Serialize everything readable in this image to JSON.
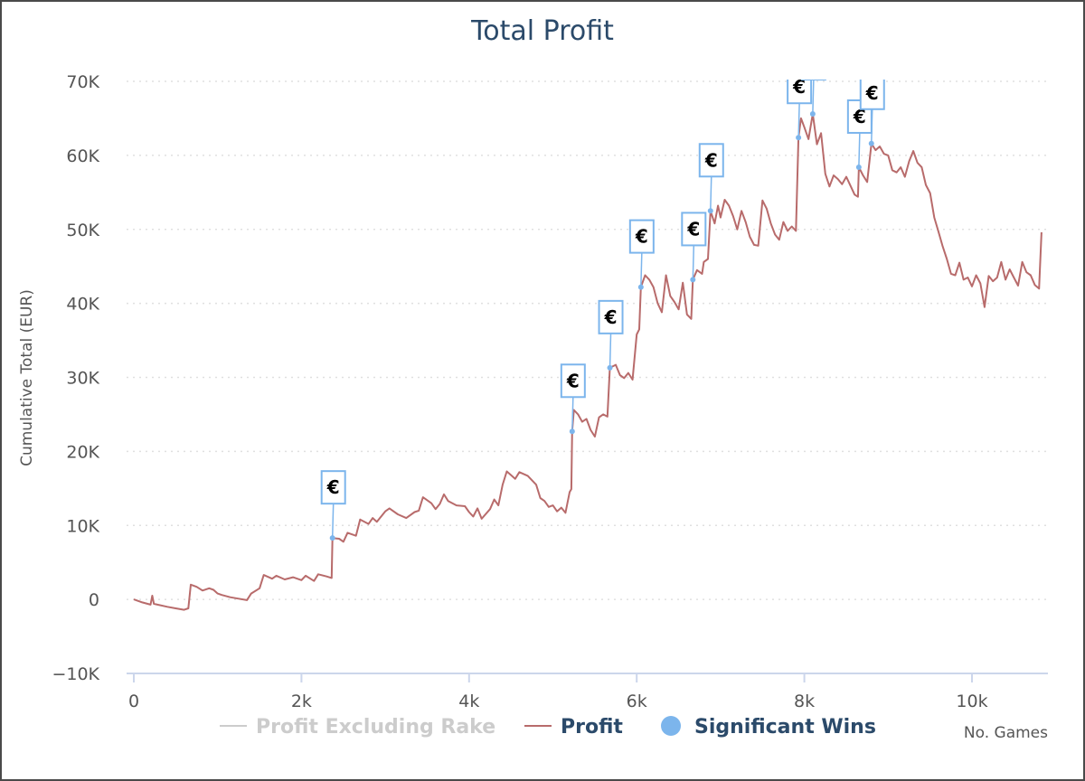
{
  "chart_data": {
    "type": "line",
    "title": "Total Profit",
    "xlabel": "No. Games",
    "ylabel": "Cumulative Total (EUR)",
    "xlim": [
      0,
      10900
    ],
    "ylim": [
      -10000,
      70000
    ],
    "x_ticks": [
      0,
      2000,
      4000,
      6000,
      8000,
      10000
    ],
    "x_tick_labels": [
      "0",
      "2k",
      "4k",
      "6k",
      "8k",
      "10k"
    ],
    "y_ticks": [
      -10000,
      0,
      10000,
      20000,
      30000,
      40000,
      50000,
      60000,
      70000
    ],
    "y_tick_labels": [
      "−10K",
      "0",
      "10K",
      "20K",
      "30K",
      "40K",
      "50K",
      "60K",
      "70K"
    ],
    "grid": "horizontal dotted",
    "legend_position": "bottom",
    "legend": [
      {
        "label": "Profit Excluding Rake",
        "color": "#cccccc",
        "symbol": "line",
        "hidden": true
      },
      {
        "label": "Profit",
        "color": "#b86b6b",
        "symbol": "line"
      },
      {
        "label": "Significant Wins",
        "color": "#7cb5ec",
        "symbol": "circle"
      }
    ],
    "marker_symbol": "€",
    "series": [
      {
        "name": "Profit",
        "color": "#b86b6b",
        "points": [
          [
            0,
            0
          ],
          [
            100,
            -400
          ],
          [
            200,
            -700
          ],
          [
            220,
            500
          ],
          [
            240,
            -600
          ],
          [
            400,
            -1000
          ],
          [
            500,
            -1200
          ],
          [
            600,
            -1400
          ],
          [
            650,
            -1200
          ],
          [
            680,
            2000
          ],
          [
            750,
            1700
          ],
          [
            820,
            1200
          ],
          [
            900,
            1500
          ],
          [
            950,
            1300
          ],
          [
            1000,
            800
          ],
          [
            1050,
            600
          ],
          [
            1150,
            300
          ],
          [
            1250,
            100
          ],
          [
            1350,
            -100
          ],
          [
            1400,
            800
          ],
          [
            1500,
            1500
          ],
          [
            1550,
            3300
          ],
          [
            1650,
            2800
          ],
          [
            1700,
            3200
          ],
          [
            1800,
            2700
          ],
          [
            1900,
            3000
          ],
          [
            2000,
            2600
          ],
          [
            2050,
            3200
          ],
          [
            2150,
            2500
          ],
          [
            2200,
            3400
          ],
          [
            2300,
            3100
          ],
          [
            2360,
            2900
          ],
          [
            2370,
            8300
          ],
          [
            2450,
            8200
          ],
          [
            2500,
            7800
          ],
          [
            2550,
            9000
          ],
          [
            2650,
            8600
          ],
          [
            2700,
            10800
          ],
          [
            2800,
            10200
          ],
          [
            2850,
            11000
          ],
          [
            2900,
            10500
          ],
          [
            3000,
            11900
          ],
          [
            3050,
            12300
          ],
          [
            3150,
            11500
          ],
          [
            3250,
            11000
          ],
          [
            3350,
            11800
          ],
          [
            3400,
            12000
          ],
          [
            3450,
            13800
          ],
          [
            3550,
            13000
          ],
          [
            3600,
            12200
          ],
          [
            3650,
            12900
          ],
          [
            3700,
            14200
          ],
          [
            3750,
            13300
          ],
          [
            3850,
            12700
          ],
          [
            3950,
            12600
          ],
          [
            4000,
            11800
          ],
          [
            4050,
            11200
          ],
          [
            4100,
            12300
          ],
          [
            4150,
            10900
          ],
          [
            4250,
            12200
          ],
          [
            4300,
            13500
          ],
          [
            4350,
            12700
          ],
          [
            4400,
            15500
          ],
          [
            4450,
            17300
          ],
          [
            4500,
            16800
          ],
          [
            4550,
            16300
          ],
          [
            4600,
            17200
          ],
          [
            4700,
            16700
          ],
          [
            4800,
            15500
          ],
          [
            4850,
            13700
          ],
          [
            4900,
            13300
          ],
          [
            4950,
            12500
          ],
          [
            5000,
            12700
          ],
          [
            5050,
            11900
          ],
          [
            5100,
            12400
          ],
          [
            5150,
            11700
          ],
          [
            5200,
            14500
          ],
          [
            5220,
            14900
          ],
          [
            5230,
            22700
          ],
          [
            5250,
            25600
          ],
          [
            5300,
            25000
          ],
          [
            5350,
            24000
          ],
          [
            5400,
            24400
          ],
          [
            5450,
            22900
          ],
          [
            5500,
            22000
          ],
          [
            5550,
            24600
          ],
          [
            5600,
            25000
          ],
          [
            5650,
            24700
          ],
          [
            5680,
            31300
          ],
          [
            5750,
            31700
          ],
          [
            5800,
            30300
          ],
          [
            5850,
            29900
          ],
          [
            5900,
            30600
          ],
          [
            5950,
            29700
          ],
          [
            6000,
            35800
          ],
          [
            6030,
            36500
          ],
          [
            6050,
            42200
          ],
          [
            6100,
            43800
          ],
          [
            6150,
            43200
          ],
          [
            6200,
            42200
          ],
          [
            6250,
            40000
          ],
          [
            6300,
            38800
          ],
          [
            6350,
            43800
          ],
          [
            6400,
            41000
          ],
          [
            6450,
            40200
          ],
          [
            6500,
            39200
          ],
          [
            6550,
            42800
          ],
          [
            6600,
            38500
          ],
          [
            6650,
            37900
          ],
          [
            6670,
            43200
          ],
          [
            6720,
            44500
          ],
          [
            6780,
            44000
          ],
          [
            6800,
            45600
          ],
          [
            6850,
            46000
          ],
          [
            6880,
            52500
          ],
          [
            6930,
            50800
          ],
          [
            6970,
            53200
          ],
          [
            7000,
            51600
          ],
          [
            7050,
            54000
          ],
          [
            7100,
            53200
          ],
          [
            7150,
            51800
          ],
          [
            7200,
            50000
          ],
          [
            7250,
            52500
          ],
          [
            7300,
            51000
          ],
          [
            7350,
            49000
          ],
          [
            7400,
            47900
          ],
          [
            7450,
            47800
          ],
          [
            7500,
            53900
          ],
          [
            7550,
            52800
          ],
          [
            7600,
            50800
          ],
          [
            7650,
            49300
          ],
          [
            7700,
            48600
          ],
          [
            7750,
            51000
          ],
          [
            7800,
            49800
          ],
          [
            7850,
            50400
          ],
          [
            7900,
            49800
          ],
          [
            7930,
            62400
          ],
          [
            7960,
            65000
          ],
          [
            8000,
            63800
          ],
          [
            8050,
            62200
          ],
          [
            8100,
            65600
          ],
          [
            8150,
            61500
          ],
          [
            8200,
            63000
          ],
          [
            8250,
            57500
          ],
          [
            8300,
            55800
          ],
          [
            8350,
            57300
          ],
          [
            8400,
            56800
          ],
          [
            8450,
            56100
          ],
          [
            8500,
            57100
          ],
          [
            8550,
            55900
          ],
          [
            8600,
            54700
          ],
          [
            8640,
            54400
          ],
          [
            8650,
            58400
          ],
          [
            8700,
            57300
          ],
          [
            8750,
            56400
          ],
          [
            8800,
            61600
          ],
          [
            8850,
            60700
          ],
          [
            8900,
            61200
          ],
          [
            8950,
            60200
          ],
          [
            9000,
            60000
          ],
          [
            9050,
            58000
          ],
          [
            9100,
            57700
          ],
          [
            9150,
            58400
          ],
          [
            9200,
            57100
          ],
          [
            9250,
            59200
          ],
          [
            9300,
            60600
          ],
          [
            9350,
            59000
          ],
          [
            9400,
            58400
          ],
          [
            9450,
            56000
          ],
          [
            9500,
            54900
          ],
          [
            9550,
            51600
          ],
          [
            9600,
            49700
          ],
          [
            9650,
            47700
          ],
          [
            9700,
            46000
          ],
          [
            9750,
            44000
          ],
          [
            9800,
            43800
          ],
          [
            9850,
            45500
          ],
          [
            9900,
            43200
          ],
          [
            9950,
            43500
          ],
          [
            10000,
            42300
          ],
          [
            10050,
            43800
          ],
          [
            10100,
            42700
          ],
          [
            10150,
            39500
          ],
          [
            10200,
            43700
          ],
          [
            10250,
            43000
          ],
          [
            10300,
            43500
          ],
          [
            10350,
            45600
          ],
          [
            10400,
            43200
          ],
          [
            10450,
            44600
          ],
          [
            10500,
            43500
          ],
          [
            10550,
            42400
          ],
          [
            10600,
            45600
          ],
          [
            10650,
            44200
          ],
          [
            10700,
            43800
          ],
          [
            10750,
            42500
          ],
          [
            10800,
            42000
          ],
          [
            10830,
            49600
          ]
        ]
      }
    ],
    "significant_wins": [
      {
        "x": 2370,
        "y": 8300
      },
      {
        "x": 5230,
        "y": 22700
      },
      {
        "x": 5680,
        "y": 31300
      },
      {
        "x": 6050,
        "y": 42200
      },
      {
        "x": 6670,
        "y": 43200
      },
      {
        "x": 6880,
        "y": 52500
      },
      {
        "x": 7930,
        "y": 62400
      },
      {
        "x": 8100,
        "y": 65600
      },
      {
        "x": 8650,
        "y": 58400
      },
      {
        "x": 8800,
        "y": 61600
      }
    ]
  }
}
